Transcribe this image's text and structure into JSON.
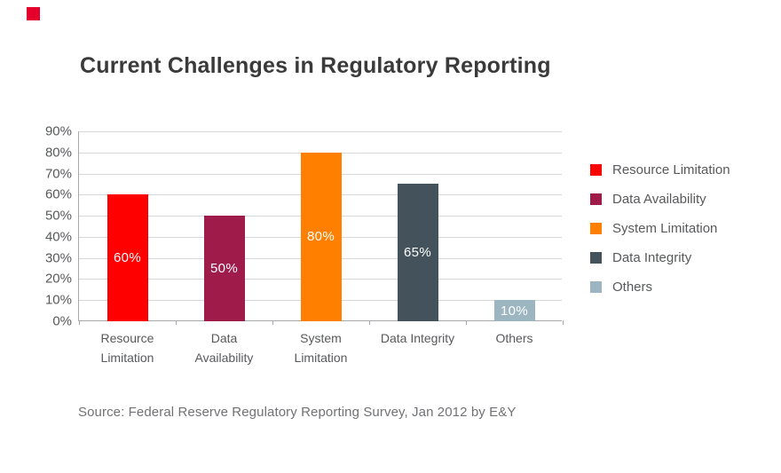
{
  "brand_mark": {
    "color": "#e4002b"
  },
  "header": {
    "title": "Current Challenges in Regulatory Reporting"
  },
  "footer": {
    "source": "Source: Federal Reserve Regulatory Reporting Survey, Jan 2012 by E&Y"
  },
  "chart_data": {
    "type": "bar",
    "title": "Current Challenges in Regulatory Reporting",
    "categories": [
      "Resource Limitation",
      "Data Availability",
      "System Limitation",
      "Data Integrity",
      "Others"
    ],
    "category_tick_labels": [
      "Resource\nLimitation",
      "Data\nAvailability",
      "System\nLimitation",
      "Data Integrity",
      "Others"
    ],
    "values": [
      60,
      50,
      80,
      65,
      10
    ],
    "bar_value_labels": [
      "60%",
      "50%",
      "80%",
      "65%",
      "10%"
    ],
    "bar_colors": [
      "#fe0000",
      "#9e1b4a",
      "#ff8000",
      "#43525b",
      "#9db5c1"
    ],
    "xlabel": "",
    "ylabel": "",
    "ylim": [
      0,
      90
    ],
    "ytick_step": 10,
    "ytick_labels": [
      "0%",
      "10%",
      "20%",
      "30%",
      "40%",
      "50%",
      "60%",
      "70%",
      "80%",
      "90%"
    ],
    "grid": true,
    "legend_position": "right",
    "legend": [
      {
        "label": "Resource Limitation",
        "color": "#fe0000"
      },
      {
        "label": "Data Availability",
        "color": "#9e1b4a"
      },
      {
        "label": "System Limitation",
        "color": "#ff8000"
      },
      {
        "label": "Data Integrity",
        "color": "#43525b"
      },
      {
        "label": "Others",
        "color": "#9db5c1"
      }
    ],
    "value_label_color": "#ffffff"
  },
  "style": {
    "grid_color": "#d7d8da",
    "axis_color": "#a7a9ac",
    "tick_label_color": "#58595b",
    "title_color": "#3a3a3a",
    "source_color": "#717275",
    "background": "#ffffff"
  }
}
